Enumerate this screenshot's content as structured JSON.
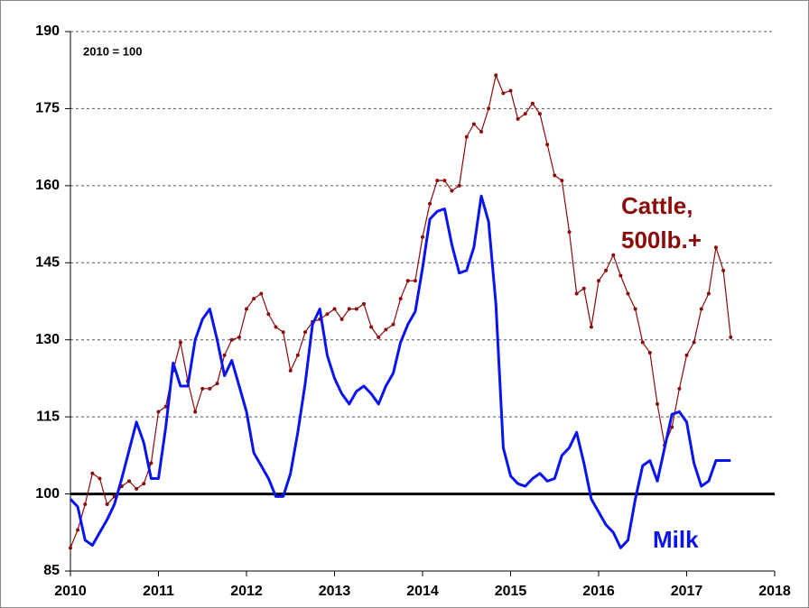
{
  "chart_data": {
    "type": "line",
    "annotations": [
      "2010 = 100",
      "Cattle,",
      "500lb.+",
      "Milk"
    ],
    "x": [
      2010,
      2010.083,
      2010.167,
      2010.25,
      2010.333,
      2010.417,
      2010.5,
      2010.583,
      2010.667,
      2010.75,
      2010.833,
      2010.917,
      2011,
      2011.083,
      2011.167,
      2011.25,
      2011.333,
      2011.417,
      2011.5,
      2011.583,
      2011.667,
      2011.75,
      2011.833,
      2011.917,
      2012,
      2012.083,
      2012.167,
      2012.25,
      2012.333,
      2012.417,
      2012.5,
      2012.583,
      2012.667,
      2012.75,
      2012.833,
      2012.917,
      2013,
      2013.083,
      2013.167,
      2013.25,
      2013.333,
      2013.417,
      2013.5,
      2013.583,
      2013.667,
      2013.75,
      2013.833,
      2013.917,
      2014,
      2014.083,
      2014.167,
      2014.25,
      2014.333,
      2014.417,
      2014.5,
      2014.583,
      2014.667,
      2014.75,
      2014.833,
      2014.917,
      2015,
      2015.083,
      2015.167,
      2015.25,
      2015.333,
      2015.417,
      2015.5,
      2015.583,
      2015.667,
      2015.75,
      2015.833,
      2015.917,
      2016,
      2016.083,
      2016.167,
      2016.25,
      2016.333,
      2016.417,
      2016.5,
      2016.583,
      2016.667,
      2016.75,
      2016.833,
      2016.917,
      2017,
      2017.083,
      2017.167,
      2017.25,
      2017.333,
      2017.417,
      2017.5
    ],
    "series": [
      {
        "name": "Cattle",
        "color": "#8b0a0a",
        "markers": true,
        "values": [
          89.5,
          93,
          98,
          104,
          103,
          98,
          99.5,
          101.5,
          102.5,
          101,
          102,
          106,
          116,
          117,
          124,
          129.5,
          122,
          116,
          120.5,
          120.5,
          121.5,
          127,
          130,
          130.5,
          136,
          138,
          139,
          135,
          132.5,
          131.5,
          124,
          127,
          131.5,
          133.5,
          134,
          135,
          136,
          134,
          136,
          136,
          137,
          132.5,
          130.5,
          132,
          133,
          138,
          141.5,
          141.5,
          150,
          156.5,
          161,
          161,
          159,
          160,
          169.5,
          172,
          170.5,
          175,
          181.5,
          178,
          178.5,
          173,
          174,
          176,
          174,
          168,
          162,
          161,
          151,
          139,
          140,
          132.5,
          141.5,
          143.5,
          146.5,
          142.5,
          139,
          136,
          129.5,
          127.5,
          117.5,
          109.5,
          113,
          120.5,
          127,
          129.5,
          136,
          139,
          148,
          143.5,
          130.5
        ]
      },
      {
        "name": "Milk",
        "color": "#0a14f0",
        "markers": false,
        "values": [
          99,
          97.5,
          91,
          90,
          92.5,
          95,
          98,
          103,
          108.5,
          114,
          110,
          103,
          103,
          113,
          125.5,
          121,
          121,
          130,
          134,
          136,
          130,
          123,
          126,
          121,
          116,
          108,
          105.5,
          103,
          99.5,
          99.5,
          104,
          112,
          121.5,
          133,
          136,
          127,
          122.5,
          119.5,
          117.5,
          120,
          121,
          119.5,
          117.5,
          121,
          123.5,
          129.5,
          133,
          135.5,
          144,
          153.5,
          155,
          155.5,
          148.5,
          143,
          143.5,
          148,
          158,
          153,
          137,
          109,
          103.5,
          102,
          101.5,
          103,
          104,
          102.5,
          103,
          107.5,
          109,
          112,
          106,
          99,
          96.5,
          94,
          92.5,
          89.5,
          91,
          99,
          105.5,
          106.5,
          102.5,
          109,
          115.5,
          116,
          114,
          106,
          101.5,
          102.5,
          106.5,
          106.5,
          106.5
        ]
      }
    ],
    "xlim": [
      2010,
      2018
    ],
    "xticks": [
      2010,
      2011,
      2012,
      2013,
      2014,
      2015,
      2016,
      2017,
      2018
    ],
    "ylim": [
      85,
      190
    ],
    "yticks": [
      85,
      100,
      115,
      130,
      145,
      160,
      175,
      190
    ],
    "reference_line": 100,
    "grid": true
  }
}
